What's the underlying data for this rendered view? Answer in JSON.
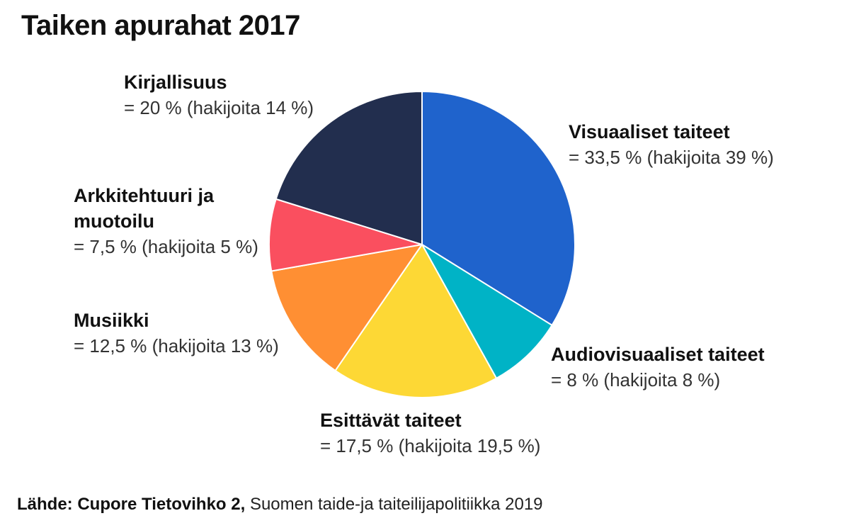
{
  "title": "Taiken apurahat 2017",
  "source": {
    "prefix": "Lähde: Cupore Tietovihko 2,",
    "text": "Suomen taide-ja taiteilijapolitiikka 2019"
  },
  "chart_data": {
    "type": "pie",
    "title": "Taiken apurahat 2017",
    "unit": "%",
    "slices": [
      {
        "label": "Visuaaliset taiteet",
        "value": 33.5,
        "value_text": "= 33,5 % (hakijoita 39 %)",
        "color": "#1f63cc"
      },
      {
        "label": "Audiovisuaaliset taiteet",
        "value": 8,
        "value_text": "= 8 % (hakijoita 8 %)",
        "color": "#00b3c6"
      },
      {
        "label": "Esittävät taiteet",
        "value": 17.5,
        "value_text": "= 17,5 % (hakijoita 19,5 %)",
        "color": "#fdd835"
      },
      {
        "label": "Musiikki",
        "value": 12.5,
        "value_text": "= 12,5 % (hakijoita 13 %)",
        "color": "#ff8f33"
      },
      {
        "label": "Arkkitehtuuri ja muotoilu",
        "value": 7.5,
        "value_text": "= 7,5 % (hakijoita 5 %)",
        "color": "#fa4f5f"
      },
      {
        "label": "Kirjallisuus",
        "value": 20,
        "value_text": "= 20 % (hakijoita 14 %)",
        "color": "#222e4e"
      }
    ]
  }
}
